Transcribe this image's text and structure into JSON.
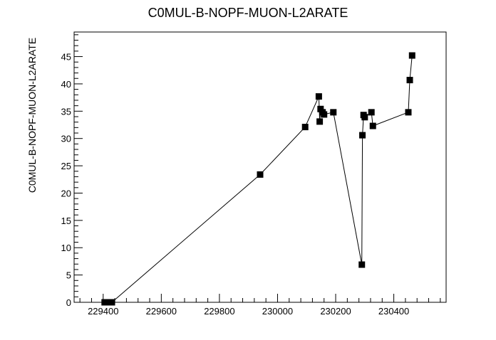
{
  "chart_data": {
    "type": "line",
    "title": "C0MUL-B-NOPF-MUON-L2ARATE",
    "xlabel": "",
    "ylabel": "C0MUL-B-NOPF-MUON-L2ARATE",
    "xlim": [
      229300,
      230580
    ],
    "ylim": [
      0,
      49.5
    ],
    "x_ticks": [
      229400,
      229600,
      229800,
      230000,
      230200,
      230400
    ],
    "x_tick_labels": [
      "229400",
      "229600",
      "229800",
      "230000",
      "230200",
      "230400"
    ],
    "y_ticks": [
      0,
      5,
      10,
      15,
      20,
      25,
      30,
      35,
      40,
      45
    ],
    "y_tick_labels": [
      "0",
      "5",
      "10",
      "15",
      "20",
      "25",
      "30",
      "35",
      "40",
      "45"
    ],
    "grid": false,
    "marker": "square",
    "series": [
      {
        "x": [
          229405,
          229410,
          229415,
          229420,
          229425,
          229430,
          229940,
          230095,
          230142,
          230145,
          230148,
          230155,
          230160,
          230192,
          230290,
          230292,
          230296,
          230300,
          230323,
          230328,
          230450,
          230455,
          230463
        ],
        "y": [
          0,
          0,
          0,
          0,
          0,
          0,
          23.4,
          32.1,
          37.7,
          33.1,
          35.4,
          34.8,
          34.4,
          34.8,
          6.9,
          30.6,
          34.3,
          33.9,
          34.8,
          32.3,
          34.8,
          40.7,
          45.2
        ]
      }
    ]
  }
}
